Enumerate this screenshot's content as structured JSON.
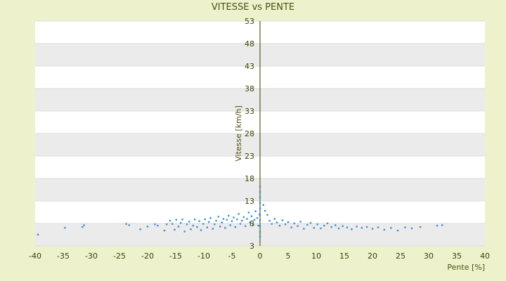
{
  "chart_data": {
    "type": "scatter",
    "title": "VITESSE vs PENTE",
    "xlabel": "Pente [%]",
    "ylabel": "Vitesse [km/h]",
    "xlim": [
      -40,
      40
    ],
    "ylim": [
      3,
      53
    ],
    "xticks": [
      -40,
      -35,
      -30,
      -25,
      -20,
      -15,
      -10,
      -5,
      0,
      5,
      10,
      15,
      20,
      25,
      30,
      35,
      40
    ],
    "yticks": [
      3,
      8,
      13,
      18,
      23,
      28,
      33,
      38,
      43,
      48,
      53
    ],
    "grid": "alternating horizontal bands",
    "legend": "none",
    "series": [
      {
        "color": "#3f8fd6",
        "points": [
          [
            -39.5,
            5.5
          ],
          [
            -34.7,
            7.0
          ],
          [
            -31.6,
            7.2
          ],
          [
            -31.3,
            7.6
          ],
          [
            -23.8,
            7.9
          ],
          [
            -23.3,
            7.6
          ],
          [
            -21.3,
            6.7
          ],
          [
            -20.0,
            7.3
          ],
          [
            -18.7,
            7.8
          ],
          [
            -18.2,
            7.5
          ],
          [
            -17.0,
            6.4
          ],
          [
            -16.6,
            7.8
          ],
          [
            -16.0,
            8.6
          ],
          [
            -15.6,
            7.9
          ],
          [
            -15.2,
            6.6
          ],
          [
            -14.9,
            8.8
          ],
          [
            -14.5,
            7.3
          ],
          [
            -14.1,
            8.1
          ],
          [
            -13.8,
            8.9
          ],
          [
            -13.4,
            6.2
          ],
          [
            -13.0,
            7.8
          ],
          [
            -12.6,
            8.4
          ],
          [
            -12.3,
            6.7
          ],
          [
            -11.9,
            7.5
          ],
          [
            -11.6,
            8.9
          ],
          [
            -11.2,
            7.2
          ],
          [
            -10.8,
            8.5
          ],
          [
            -10.5,
            6.5
          ],
          [
            -10.1,
            7.9
          ],
          [
            -9.8,
            8.9
          ],
          [
            -9.4,
            7.1
          ],
          [
            -9.1,
            8.3
          ],
          [
            -8.8,
            9.2
          ],
          [
            -8.4,
            6.8
          ],
          [
            -8.1,
            7.8
          ],
          [
            -7.8,
            8.6
          ],
          [
            -7.4,
            9.5
          ],
          [
            -7.1,
            7.3
          ],
          [
            -6.8,
            8.2
          ],
          [
            -6.5,
            9.0
          ],
          [
            -6.2,
            7.0
          ],
          [
            -5.9,
            8.8
          ],
          [
            -5.6,
            9.7
          ],
          [
            -5.3,
            7.6
          ],
          [
            -5.0,
            8.5
          ],
          [
            -4.7,
            9.3
          ],
          [
            -4.4,
            7.2
          ],
          [
            -4.1,
            8.9
          ],
          [
            -3.8,
            10.1
          ],
          [
            -3.5,
            7.9
          ],
          [
            -3.2,
            8.6
          ],
          [
            -2.9,
            9.4
          ],
          [
            -2.6,
            7.4
          ],
          [
            -2.3,
            9.0
          ],
          [
            -2.0,
            10.4
          ],
          [
            -1.8,
            8.2
          ],
          [
            -1.5,
            9.6
          ],
          [
            -1.2,
            7.7
          ],
          [
            -1.0,
            8.8
          ],
          [
            -0.8,
            10.7
          ],
          [
            -0.5,
            9.2
          ],
          [
            -0.3,
            7.5
          ],
          [
            -0.1,
            10.0
          ],
          [
            0.0,
            5.0
          ],
          [
            0.0,
            6.1
          ],
          [
            0.0,
            7.4
          ],
          [
            0.0,
            8.7
          ],
          [
            0.0,
            9.9
          ],
          [
            0.0,
            11.3
          ],
          [
            0.0,
            12.5
          ],
          [
            0.0,
            13.8
          ],
          [
            0.0,
            15.0
          ],
          [
            0.0,
            16.2
          ],
          [
            0.6,
            12.1
          ],
          [
            0.9,
            10.8
          ],
          [
            1.3,
            9.9
          ],
          [
            1.7,
            8.6
          ],
          [
            2.1,
            7.9
          ],
          [
            2.6,
            9.0
          ],
          [
            3.0,
            8.2
          ],
          [
            3.5,
            7.5
          ],
          [
            4.0,
            8.7
          ],
          [
            4.5,
            7.8
          ],
          [
            5.0,
            8.3
          ],
          [
            5.6,
            7.1
          ],
          [
            6.1,
            8.0
          ],
          [
            6.7,
            7.4
          ],
          [
            7.2,
            8.4
          ],
          [
            7.8,
            6.8
          ],
          [
            8.4,
            7.7
          ],
          [
            9.0,
            8.1
          ],
          [
            9.6,
            7.0
          ],
          [
            10.2,
            7.8
          ],
          [
            10.8,
            6.9
          ],
          [
            11.4,
            7.5
          ],
          [
            12.0,
            8.0
          ],
          [
            12.7,
            7.2
          ],
          [
            13.4,
            7.6
          ],
          [
            14.0,
            6.9
          ],
          [
            14.7,
            7.4
          ],
          [
            15.5,
            7.1
          ],
          [
            16.3,
            6.7
          ],
          [
            17.2,
            7.3
          ],
          [
            18.1,
            7.0
          ],
          [
            19.0,
            7.2
          ],
          [
            20.0,
            6.8
          ],
          [
            21.0,
            7.1
          ],
          [
            22.1,
            6.6
          ],
          [
            23.3,
            7.0
          ],
          [
            24.5,
            6.4
          ],
          [
            25.8,
            7.1
          ],
          [
            27.0,
            6.9
          ],
          [
            28.5,
            7.2
          ],
          [
            31.5,
            7.5
          ],
          [
            32.4,
            7.6
          ]
        ]
      }
    ]
  }
}
